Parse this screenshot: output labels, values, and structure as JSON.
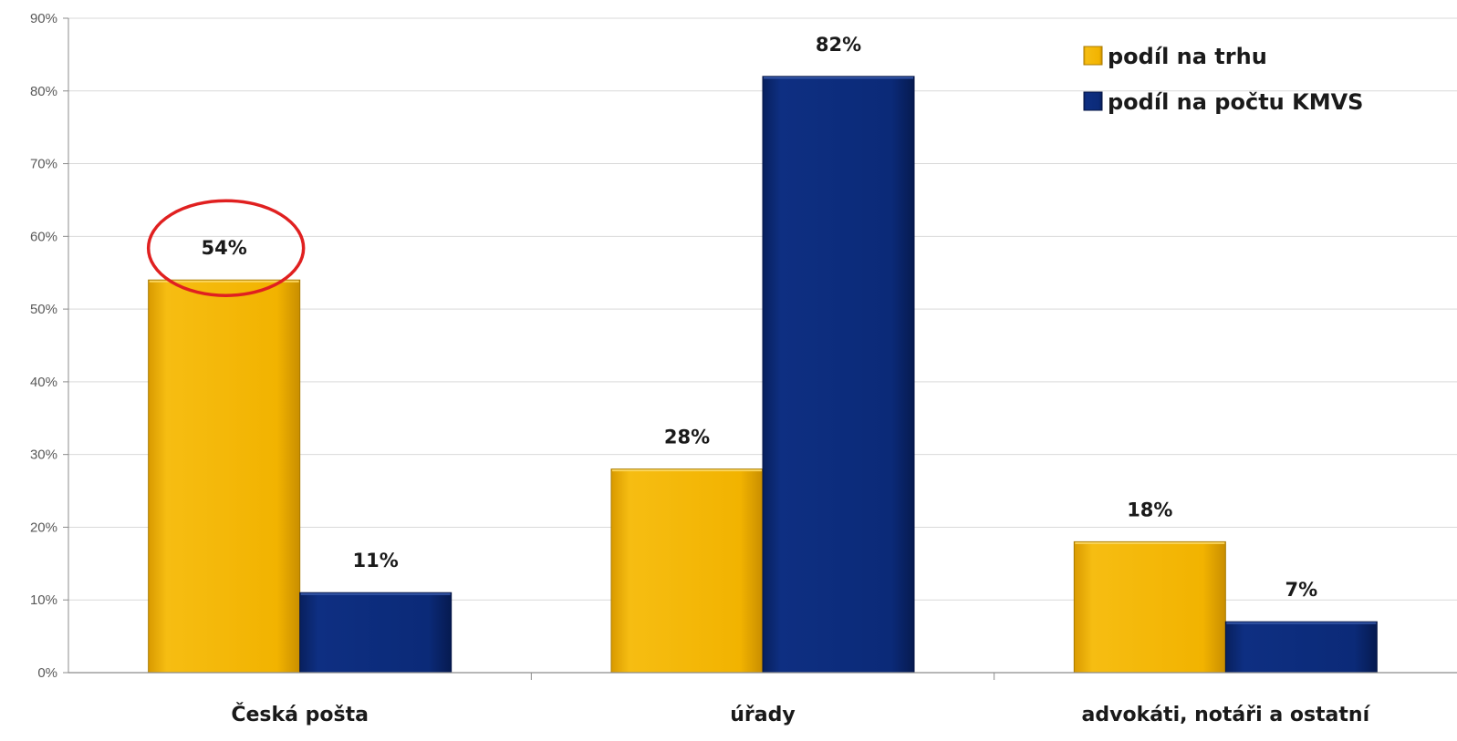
{
  "chart_data": {
    "type": "bar",
    "categories": [
      "Česká pošta",
      "úřady",
      "advokáti, notáři a ostatní"
    ],
    "series": [
      {
        "name": "podíl na trhu",
        "values": [
          54,
          28,
          18
        ],
        "labels": [
          "54%",
          "28%",
          "18%"
        ],
        "color": "#f2b300"
      },
      {
        "name": "podíl na počtu KMVS",
        "values": [
          11,
          82,
          7
        ],
        "labels": [
          "11%",
          "82%",
          "7%"
        ],
        "color": "#0b2a78"
      }
    ],
    "y_ticks": [
      0,
      10,
      20,
      30,
      40,
      50,
      60,
      70,
      80,
      90
    ],
    "y_tick_labels": [
      "0%",
      "10%",
      "20%",
      "30%",
      "40%",
      "50%",
      "60%",
      "70%",
      "80%",
      "90%"
    ],
    "ylim": [
      0,
      90
    ],
    "grid": true,
    "legend_position": "top-right",
    "annotation": {
      "type": "ellipse",
      "target": "Česká pošta / podíl na trhu label",
      "color": "#e02020"
    },
    "title": "",
    "xlabel": "",
    "ylabel": ""
  }
}
